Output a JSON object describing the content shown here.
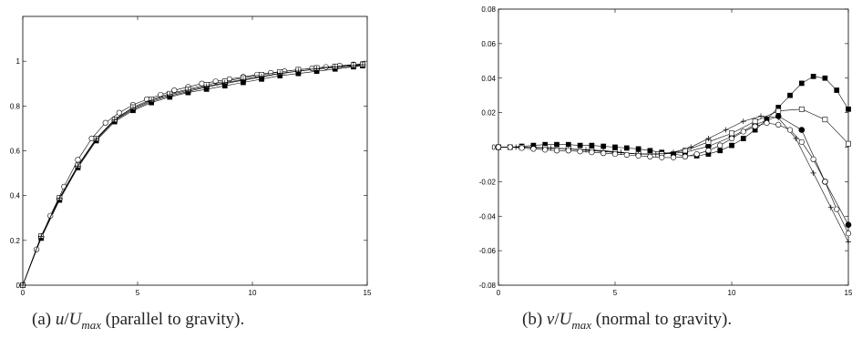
{
  "captions": {
    "a": {
      "prefix": "(a) ",
      "var": "u",
      "slash": "/",
      "U": "U",
      "sub": "max",
      "desc": " (parallel to gravity)."
    },
    "b": {
      "prefix": "(b) ",
      "var": "v",
      "slash": "/",
      "U": "U",
      "sub": "max",
      "desc": " (normal to gravity)."
    }
  },
  "chart_data": [
    {
      "type": "line",
      "title": "(a) u/Umax (parallel to gravity).",
      "xlabel": "",
      "ylabel": "",
      "xlim": [
        0,
        15
      ],
      "ylim": [
        0,
        1.2
      ],
      "xticks": [
        0,
        5,
        10,
        15
      ],
      "xtick_labels": [
        "0",
        "5",
        "10",
        "15"
      ],
      "yticks": [
        0,
        0.2,
        0.4,
        0.6,
        0.8,
        1
      ],
      "ytick_labels": [
        "0",
        "0.2",
        "0.4",
        "0.6",
        "0.8",
        "1"
      ],
      "grid": false,
      "series": [
        {
          "marker": "filled-circle",
          "x": [
            0,
            0.8,
            1.6,
            2.4,
            3.2,
            4.0,
            4.8,
            5.6,
            6.4,
            7.2,
            8.0,
            8.8,
            9.6,
            10.4,
            11.2,
            12.0,
            12.8,
            13.6,
            14.4,
            14.8
          ],
          "y": [
            0,
            0.215,
            0.385,
            0.53,
            0.65,
            0.735,
            0.785,
            0.82,
            0.845,
            0.865,
            0.885,
            0.9,
            0.915,
            0.93,
            0.945,
            0.955,
            0.965,
            0.972,
            0.978,
            0.982
          ]
        },
        {
          "marker": "filled-square",
          "x": [
            0,
            0.8,
            1.6,
            2.4,
            3.2,
            4.0,
            4.8,
            5.6,
            6.4,
            7.2,
            8.0,
            8.8,
            9.6,
            10.4,
            11.2,
            12.0,
            12.8,
            13.6,
            14.4,
            14.8
          ],
          "y": [
            0,
            0.21,
            0.38,
            0.525,
            0.645,
            0.73,
            0.78,
            0.815,
            0.84,
            0.86,
            0.875,
            0.89,
            0.905,
            0.92,
            0.935,
            0.945,
            0.955,
            0.965,
            0.975,
            0.98
          ]
        },
        {
          "marker": "open-circle",
          "x": [
            0,
            0.6,
            1.2,
            1.8,
            2.4,
            3.0,
            3.6,
            4.2,
            4.8,
            5.4,
            6.0,
            6.6,
            7.2,
            7.8,
            8.4,
            9.0,
            9.6,
            10.2,
            10.8,
            11.4,
            12.0,
            12.6,
            13.2,
            13.8,
            14.4,
            14.8
          ],
          "y": [
            0,
            0.16,
            0.31,
            0.44,
            0.56,
            0.655,
            0.725,
            0.77,
            0.805,
            0.83,
            0.85,
            0.87,
            0.885,
            0.9,
            0.91,
            0.92,
            0.93,
            0.94,
            0.948,
            0.955,
            0.962,
            0.968,
            0.974,
            0.98,
            0.985,
            0.988
          ]
        },
        {
          "marker": "open-square",
          "x": [
            0,
            0.8,
            1.6,
            2.4,
            3.2,
            4.0,
            4.8,
            5.6,
            6.4,
            7.2,
            8.0,
            8.8,
            9.6,
            10.4,
            11.2,
            12.0,
            12.8,
            13.6,
            14.4,
            14.8
          ],
          "y": [
            0,
            0.22,
            0.39,
            0.535,
            0.655,
            0.74,
            0.795,
            0.83,
            0.855,
            0.875,
            0.895,
            0.91,
            0.925,
            0.94,
            0.952,
            0.962,
            0.97,
            0.977,
            0.983,
            0.986
          ]
        },
        {
          "marker": "plus",
          "x": [
            0,
            0.8,
            1.6,
            2.4,
            3.2,
            4.0,
            4.8,
            5.6,
            6.4,
            7.2,
            8.0,
            8.8,
            9.6,
            10.4,
            11.2,
            12.0,
            12.8,
            13.6,
            14.4,
            14.8
          ],
          "y": [
            0,
            0.218,
            0.388,
            0.532,
            0.652,
            0.738,
            0.79,
            0.825,
            0.85,
            0.87,
            0.888,
            0.904,
            0.918,
            0.932,
            0.946,
            0.956,
            0.966,
            0.974,
            0.98,
            0.984
          ]
        }
      ]
    },
    {
      "type": "line",
      "title": "(b) v/Umax (normal to gravity).",
      "xlabel": "",
      "ylabel": "",
      "xlim": [
        0,
        15
      ],
      "ylim": [
        -0.08,
        0.08
      ],
      "xticks": [
        0,
        5,
        10,
        15
      ],
      "xtick_labels": [
        "0",
        "5",
        "10",
        "15"
      ],
      "yticks": [
        -0.08,
        -0.06,
        -0.04,
        -0.02,
        0,
        0.02,
        0.04,
        0.06,
        0.08
      ],
      "ytick_labels": [
        "-0.08",
        "-0.06",
        "-0.04",
        "-0.02",
        "0",
        "0.02",
        "0.04",
        "0.06",
        "0.08"
      ],
      "grid": false,
      "series": [
        {
          "marker": "filled-square",
          "x": [
            0,
            0.5,
            1,
            1.5,
            2,
            2.5,
            3,
            3.5,
            4,
            4.5,
            5,
            5.5,
            6,
            6.5,
            7,
            7.5,
            8,
            8.5,
            9,
            9.5,
            10,
            10.5,
            11,
            11.5,
            12,
            12.5,
            13,
            13.5,
            14,
            14.5,
            15
          ],
          "y": [
            0,
            0,
            0.0005,
            0.001,
            0.0015,
            0.0015,
            0.0015,
            0.001,
            0.001,
            0.0005,
            0,
            -0.0005,
            -0.001,
            -0.002,
            -0.003,
            -0.004,
            -0.005,
            -0.005,
            -0.004,
            -0.002,
            0.001,
            0.005,
            0.01,
            0.016,
            0.023,
            0.03,
            0.037,
            0.041,
            0.04,
            0.033,
            0.022
          ]
        },
        {
          "marker": "filled-circle",
          "x": [
            0,
            1,
            2,
            3,
            4,
            5,
            6,
            7,
            8,
            9,
            10,
            11,
            12,
            13,
            14,
            15
          ],
          "y": [
            0,
            0,
            -0.0005,
            -0.001,
            -0.002,
            -0.003,
            -0.004,
            -0.004,
            -0.003,
            0.0005,
            0.006,
            0.013,
            0.018,
            0.01,
            -0.02,
            -0.045
          ]
        },
        {
          "marker": "open-square",
          "x": [
            0,
            1,
            2,
            3,
            4,
            5,
            6,
            7,
            8,
            9,
            10,
            11,
            12,
            13,
            14,
            15
          ],
          "y": [
            0,
            0,
            -0.0005,
            -0.001,
            -0.002,
            -0.003,
            -0.004,
            -0.004,
            -0.002,
            0.003,
            0.008,
            0.015,
            0.021,
            0.022,
            0.016,
            0.002
          ]
        },
        {
          "marker": "plus",
          "x": [
            0,
            0.75,
            1.5,
            2.25,
            3,
            3.75,
            4.5,
            5.25,
            6,
            6.75,
            7.5,
            8.25,
            9,
            9.75,
            10.5,
            11.25,
            12,
            12.75,
            13.5,
            14.25,
            15
          ],
          "y": [
            0,
            0,
            0,
            -0.0005,
            -0.001,
            -0.0015,
            -0.002,
            -0.003,
            -0.004,
            -0.004,
            -0.003,
            0,
            0.005,
            0.01,
            0.015,
            0.018,
            0.017,
            0.005,
            -0.015,
            -0.035,
            -0.055
          ]
        },
        {
          "marker": "open-circle",
          "x": [
            0,
            0.5,
            1,
            1.5,
            2,
            2.5,
            3,
            3.5,
            4,
            4.5,
            5,
            5.5,
            6,
            6.5,
            7,
            7.5,
            8,
            8.5,
            9,
            9.5,
            10,
            10.5,
            11,
            11.5,
            12,
            12.5,
            13,
            13.5,
            14,
            14.5,
            15
          ],
          "y": [
            0,
            0,
            -0.0005,
            -0.001,
            -0.0015,
            -0.002,
            -0.002,
            -0.0025,
            -0.003,
            -0.0035,
            -0.004,
            -0.0045,
            -0.005,
            -0.0055,
            -0.006,
            -0.006,
            -0.0055,
            -0.004,
            -0.002,
            0.001,
            0.005,
            0.009,
            0.012,
            0.014,
            0.013,
            0.01,
            0.003,
            -0.007,
            -0.02,
            -0.036,
            -0.05
          ]
        }
      ]
    }
  ]
}
